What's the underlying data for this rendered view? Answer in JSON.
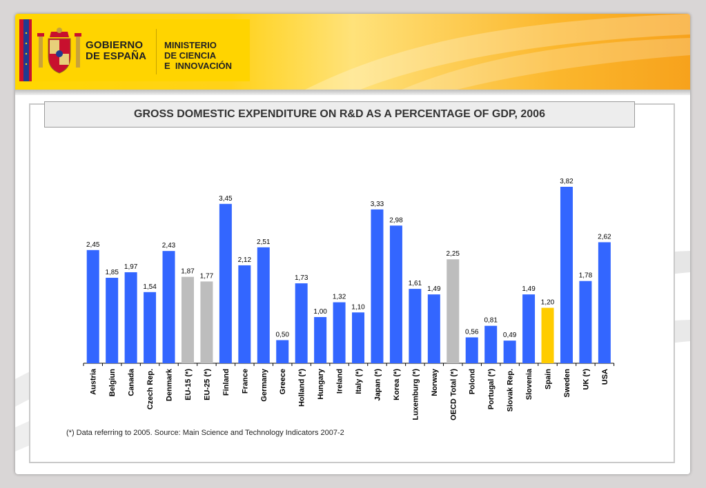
{
  "header": {
    "gov_line1": "GOBIERNO",
    "gov_line2": "DE ESPAÑA",
    "ministry_line1": "MINISTERIO",
    "ministry_line2": "DE CIENCIA",
    "ministry_line3": "E  INNOVACIÓN"
  },
  "colors": {
    "standard": "#3366ff",
    "aggregate": "#bdbdbd",
    "highlight": "#ffcc00"
  },
  "footnote": "(*) Data referring to 2005. Source: Main Science and Technology Indicators 2007-2",
  "chart_data": {
    "type": "bar",
    "title": "GROSS DOMESTIC EXPENDITURE ON R&D AS A PERCENTAGE OF GDP, 2006",
    "xlabel": "",
    "ylabel": "",
    "ylim": [
      0,
      3.82
    ],
    "grid": false,
    "legend": "none",
    "categories": [
      "Austria",
      "Belgiun",
      "Canada",
      "Czech Rep.",
      "Denmark",
      "EU-15 (*)",
      "EU-25 (*)",
      "Finland",
      "France",
      "Germany",
      "Greece",
      "Holland (*)",
      "Hungary",
      "Ireland",
      "Italy (*)",
      "Japan (*)",
      "Korea (*)",
      "Luxemburg (*)",
      "Norway",
      "OECD Total (*)",
      "Polond",
      "Portugal (*)",
      "Slovak Rep.",
      "Slovenia",
      "Spain",
      "Sweden",
      "UK (*)",
      "USA"
    ],
    "values": [
      2.45,
      1.85,
      1.97,
      1.54,
      2.43,
      1.87,
      1.77,
      3.45,
      2.12,
      2.51,
      0.5,
      1.73,
      1.0,
      1.32,
      1.1,
      3.33,
      2.98,
      1.61,
      1.49,
      2.25,
      0.56,
      0.81,
      0.49,
      1.49,
      1.2,
      3.82,
      1.78,
      2.62
    ],
    "value_labels": [
      "2,45",
      "1,85",
      "1,97",
      "1,54",
      "2,43",
      "1,87",
      "1,77",
      "3,45",
      "2,12",
      "2,51",
      "0,50",
      "1,73",
      "1,00",
      "1,32",
      "1,10",
      "3,33",
      "2,98",
      "1,61",
      "1,49",
      "2,25",
      "0,56",
      "0,81",
      "0,49",
      "1,49",
      "1,20",
      "3,82",
      "1,78",
      "2,62"
    ],
    "bar_colors": [
      "standard",
      "standard",
      "standard",
      "standard",
      "standard",
      "aggregate",
      "aggregate",
      "standard",
      "standard",
      "standard",
      "standard",
      "standard",
      "standard",
      "standard",
      "standard",
      "standard",
      "standard",
      "standard",
      "standard",
      "aggregate",
      "standard",
      "standard",
      "standard",
      "standard",
      "highlight",
      "standard",
      "standard",
      "standard"
    ]
  }
}
